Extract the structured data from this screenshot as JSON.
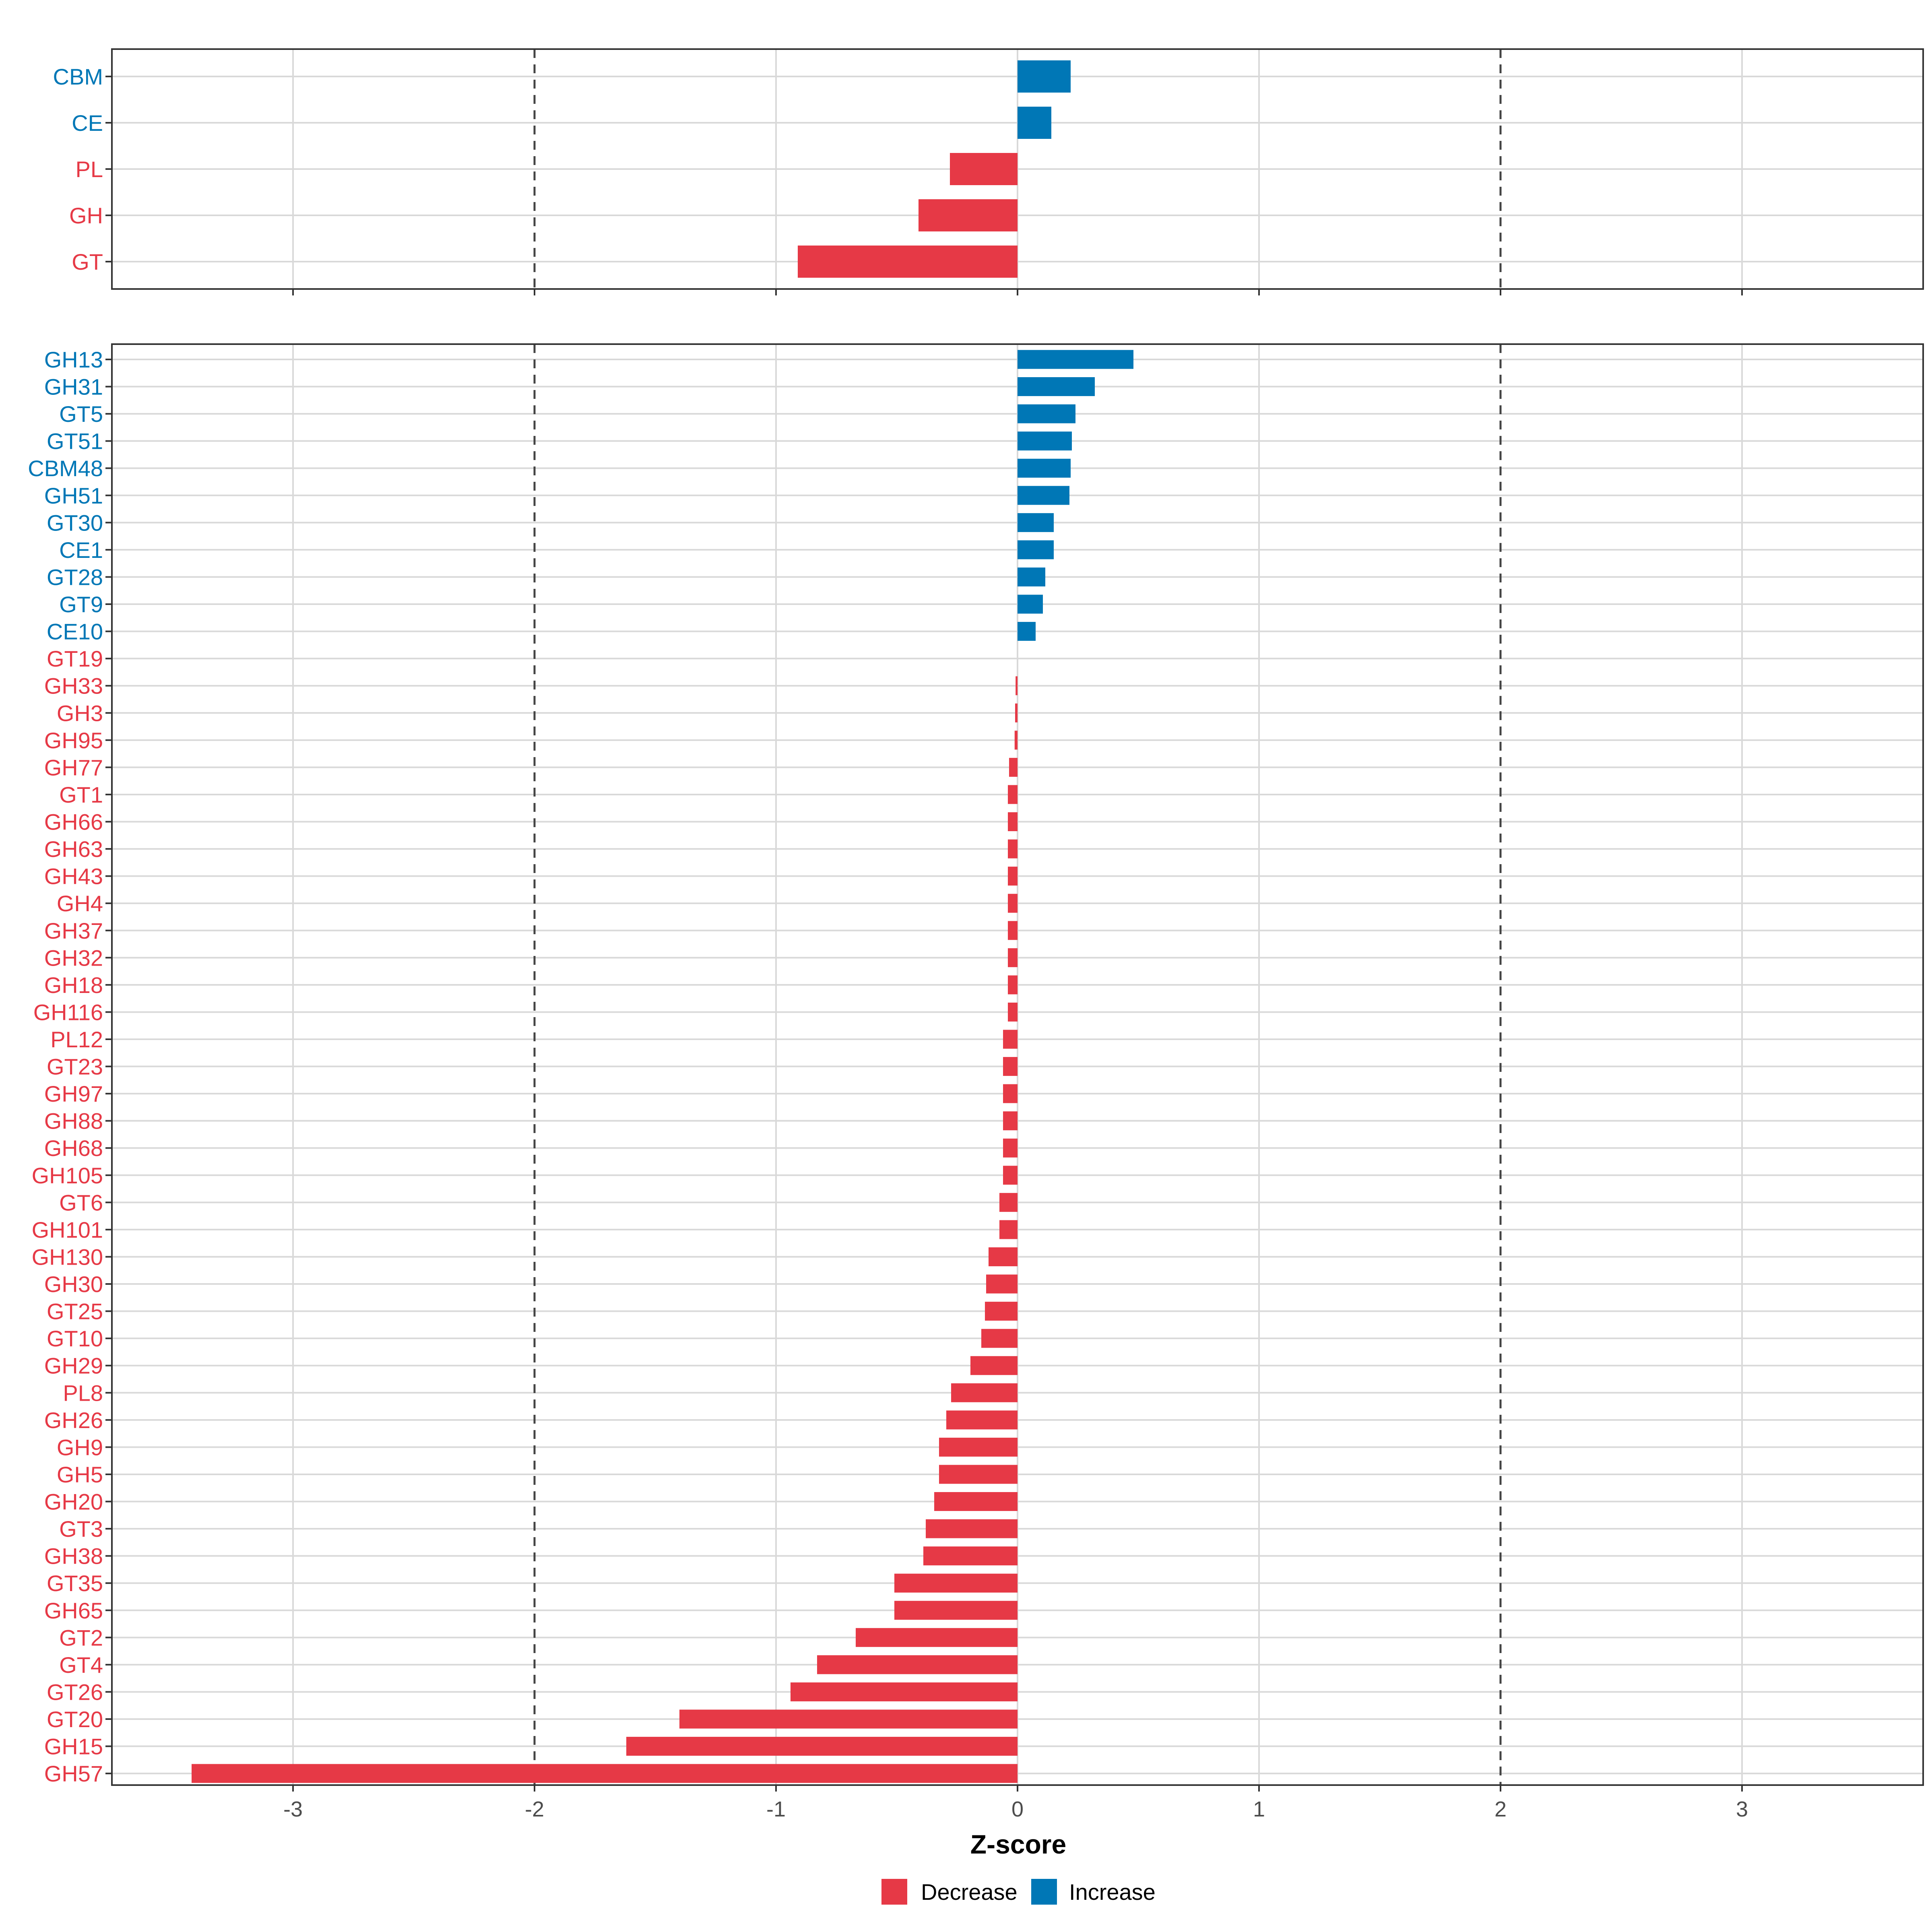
{
  "chart_data": {
    "type": "bar",
    "orientation": "horizontal",
    "xlabel": "Z-score",
    "xlim": [
      -3.75,
      3.75
    ],
    "xticks": [
      -3,
      -2,
      -1,
      0,
      1,
      2,
      3
    ],
    "reference_lines": [
      -2,
      2
    ],
    "colors": {
      "Decrease": "#E63946",
      "Increase": "#0077B6"
    },
    "legend": {
      "position": "bottom",
      "entries": [
        {
          "label": "Decrease",
          "color": "#E63946"
        },
        {
          "label": "Increase",
          "color": "#0077B6"
        }
      ]
    },
    "panels": [
      {
        "name": "classes",
        "categories": [
          "CBM",
          "CE",
          "PL",
          "GH",
          "GT"
        ],
        "values": [
          0.22,
          0.14,
          -0.28,
          -0.41,
          -0.91
        ]
      },
      {
        "name": "families",
        "categories": [
          "GH13",
          "GH31",
          "GT5",
          "GT51",
          "CBM48",
          "GH51",
          "GT30",
          "CE1",
          "GT28",
          "GT9",
          "CE10",
          "GT19",
          "GH33",
          "GH3",
          "GH95",
          "GH77",
          "GT1",
          "GH66",
          "GH63",
          "GH43",
          "GH4",
          "GH37",
          "GH32",
          "GH18",
          "GH116",
          "PL12",
          "GT23",
          "GH97",
          "GH88",
          "GH68",
          "GH105",
          "GT6",
          "GH101",
          "GH130",
          "GH30",
          "GT25",
          "GT10",
          "GH29",
          "PL8",
          "GH26",
          "GH9",
          "GH5",
          "GH20",
          "GT3",
          "GH38",
          "GT35",
          "GH65",
          "GT2",
          "GT4",
          "GT26",
          "GT20",
          "GH15",
          "GH57"
        ],
        "values": [
          0.48,
          0.32,
          0.24,
          0.225,
          0.22,
          0.215,
          0.15,
          0.15,
          0.115,
          0.105,
          0.075,
          0.0,
          -0.008,
          -0.01,
          -0.012,
          -0.035,
          -0.04,
          -0.04,
          -0.04,
          -0.04,
          -0.04,
          -0.04,
          -0.04,
          -0.04,
          -0.04,
          -0.06,
          -0.06,
          -0.06,
          -0.06,
          -0.06,
          -0.06,
          -0.075,
          -0.075,
          -0.12,
          -0.13,
          -0.135,
          -0.15,
          -0.195,
          -0.275,
          -0.295,
          -0.325,
          -0.325,
          -0.345,
          -0.38,
          -0.39,
          -0.51,
          -0.51,
          -0.67,
          -0.83,
          -0.94,
          -1.4,
          -1.62,
          -3.42
        ]
      }
    ]
  }
}
